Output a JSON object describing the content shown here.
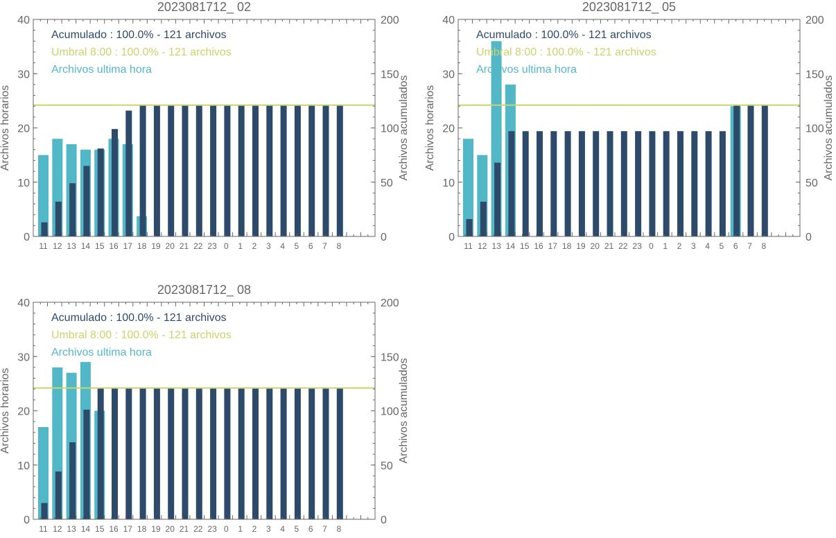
{
  "colors": {
    "accum": "#2d4a6b",
    "hourly": "#52b7c6",
    "threshold": "#c9d46b",
    "axis": "#666666",
    "text": "#666666"
  },
  "chart_data": [
    {
      "type": "bar",
      "title": "2023081712_ 02",
      "ylabel": "Archivos horarios",
      "y2label": "Archivos acumulados",
      "ylim": [
        0,
        40
      ],
      "y2lim": [
        0,
        200
      ],
      "yticks": [
        "0",
        "10",
        "20",
        "30",
        "40"
      ],
      "y2ticks": [
        "0",
        "50",
        "100",
        "150",
        "200"
      ],
      "categories": [
        "11",
        "12",
        "13",
        "14",
        "15",
        "16",
        "17",
        "18",
        "19",
        "20",
        "21",
        "22",
        "23",
        "0",
        "1",
        "2",
        "3",
        "4",
        "5",
        "6",
        "7",
        "8"
      ],
      "legend": [
        "Acumulado : 100.0% - 121 archivos",
        "Umbral 8:00 : 100.0% - 121 archivos",
        "Archivos ultima hora"
      ],
      "threshold": 121,
      "series": [
        {
          "name": "Archivos ultima hora",
          "axis": "left",
          "values": [
            15,
            18,
            17,
            16,
            16,
            18,
            17,
            3.7,
            0,
            0,
            0,
            0,
            0,
            0,
            0,
            0,
            0,
            0,
            0,
            0,
            0,
            0
          ]
        },
        {
          "name": "Acumulado",
          "axis": "right",
          "values": [
            13,
            32,
            49,
            65,
            81,
            99,
            116,
            121,
            121,
            121,
            121,
            121,
            121,
            121,
            121,
            121,
            121,
            121,
            121,
            121,
            121,
            121
          ]
        }
      ]
    },
    {
      "type": "bar",
      "title": "2023081712_ 05",
      "ylabel": "Archivos horarios",
      "y2label": "Archivos acumulados",
      "ylim": [
        0,
        40
      ],
      "y2lim": [
        0,
        200
      ],
      "yticks": [
        "0",
        "10",
        "20",
        "30",
        "40"
      ],
      "y2ticks": [
        "0",
        "50",
        "100",
        "150",
        "200"
      ],
      "categories": [
        "11",
        "12",
        "13",
        "14",
        "15",
        "16",
        "17",
        "18",
        "19",
        "20",
        "21",
        "22",
        "23",
        "0",
        "1",
        "2",
        "3",
        "4",
        "5",
        "6",
        "7",
        "8"
      ],
      "legend": [
        "Acumulado : 100.0% - 121 archivos",
        "Umbral 8:00 : 100.0% - 121 archivos",
        "Archivos ultima hora"
      ],
      "threshold": 121,
      "series": [
        {
          "name": "Archivos ultima hora",
          "axis": "left",
          "values": [
            18,
            15,
            36,
            28,
            0,
            0,
            0,
            0,
            0,
            0,
            0,
            0,
            0,
            0,
            0,
            0,
            0,
            0,
            0,
            24,
            0,
            0
          ]
        },
        {
          "name": "Acumulado",
          "axis": "right",
          "values": [
            16,
            32,
            68,
            97,
            97,
            97,
            97,
            97,
            97,
            97,
            97,
            97,
            97,
            97,
            97,
            97,
            97,
            97,
            97,
            121,
            121,
            121
          ]
        }
      ]
    },
    {
      "type": "bar",
      "title": "2023081712_ 08",
      "ylabel": "Archivos horarios",
      "y2label": "Archivos acumulados",
      "ylim": [
        0,
        40
      ],
      "y2lim": [
        0,
        200
      ],
      "yticks": [
        "0",
        "10",
        "20",
        "30",
        "40"
      ],
      "y2ticks": [
        "0",
        "50",
        "100",
        "150",
        "200"
      ],
      "categories": [
        "11",
        "12",
        "13",
        "14",
        "15",
        "16",
        "17",
        "18",
        "19",
        "20",
        "21",
        "22",
        "23",
        "0",
        "1",
        "2",
        "3",
        "4",
        "5",
        "6",
        "7",
        "8"
      ],
      "legend": [
        "Acumulado : 100.0% - 121 archivos",
        "Umbral 8:00 : 100.0% - 121 archivos",
        "Archivos ultima hora"
      ],
      "threshold": 121,
      "series": [
        {
          "name": "Archivos ultima hora",
          "axis": "left",
          "values": [
            17,
            28,
            27,
            29,
            20,
            0,
            0,
            0,
            0,
            0,
            0,
            0,
            0,
            0,
            0,
            0,
            0,
            0,
            0,
            0,
            0,
            0
          ]
        },
        {
          "name": "Acumulado",
          "axis": "right",
          "values": [
            15,
            44,
            71,
            101,
            121,
            121,
            121,
            121,
            121,
            121,
            121,
            121,
            121,
            121,
            121,
            121,
            121,
            121,
            121,
            121,
            121,
            121
          ]
        }
      ]
    }
  ]
}
